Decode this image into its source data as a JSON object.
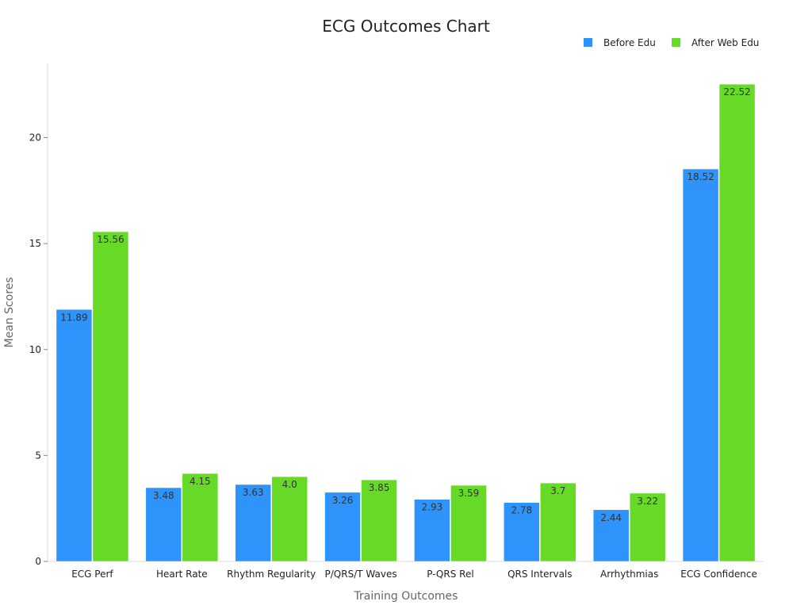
{
  "chart_data": {
    "type": "bar",
    "title": "ECG Outcomes Chart",
    "xlabel": "Training Outcomes",
    "ylabel": "Mean Scores",
    "ylim": [
      0,
      23.5
    ],
    "yticks": [
      0,
      5,
      10,
      15,
      20
    ],
    "grid": false,
    "legend_position": "top-right",
    "categories": [
      "ECG Perf",
      "Heart Rate",
      "Rhythm Regularity",
      "P/QRS/T Waves",
      "P-QRS Rel",
      "QRS Intervals",
      "Arrhythmias",
      "ECG Confidence"
    ],
    "series": [
      {
        "name": "Before Edu",
        "color": "#2E93FA",
        "values": [
          11.89,
          3.48,
          3.63,
          3.26,
          2.93,
          2.78,
          2.44,
          18.52
        ],
        "labels": [
          "11.89",
          "3.48",
          "3.63",
          "3.26",
          "2.93",
          "2.78",
          "2.44",
          "18.52"
        ]
      },
      {
        "name": "After Web Edu",
        "color": "#66DA26",
        "values": [
          15.56,
          4.15,
          4.0,
          3.85,
          3.59,
          3.7,
          3.22,
          22.52
        ],
        "labels": [
          "15.56",
          "4.15",
          "4.0",
          "3.85",
          "3.59",
          "3.7",
          "3.22",
          "22.52"
        ]
      }
    ]
  }
}
